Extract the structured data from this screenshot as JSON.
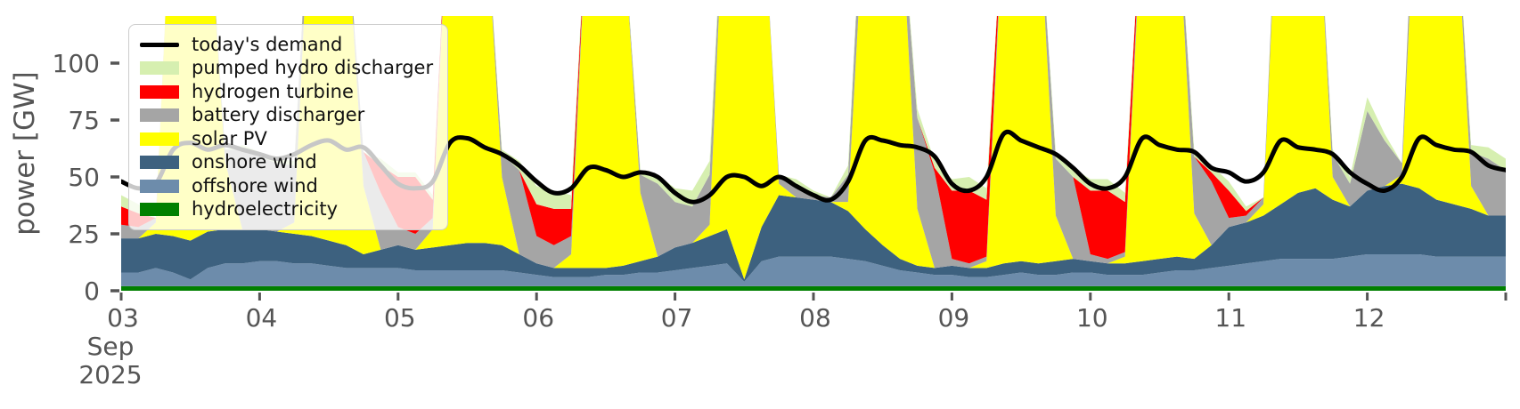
{
  "figure": {
    "background": "#ffffff",
    "text_color": "#555555",
    "tick_color": "#555555"
  },
  "legend": {
    "items": [
      {
        "label": "today's demand",
        "color": "#000000",
        "swatch": "line"
      },
      {
        "label": "pumped hydro discharger",
        "color": "#d6efb0",
        "swatch": "patch"
      },
      {
        "label": "hydrogen turbine",
        "color": "#ff0000",
        "swatch": "patch"
      },
      {
        "label": "battery discharger",
        "color": "#a5a5a5",
        "swatch": "patch"
      },
      {
        "label": "solar PV",
        "color": "#ffff00",
        "swatch": "patch"
      },
      {
        "label": "onshore wind",
        "color": "#3d617f",
        "swatch": "patch"
      },
      {
        "label": "offshore wind",
        "color": "#6d8cab",
        "swatch": "patch"
      },
      {
        "label": "hydroelectricity",
        "color": "#008000",
        "swatch": "patch"
      }
    ]
  },
  "chart_data": {
    "type": "area",
    "stacked": true,
    "title": "",
    "xlabel": "",
    "ylabel": "power [GW]",
    "ylim": [
      0,
      120
    ],
    "y_ticks": [
      0,
      25,
      50,
      75,
      100
    ],
    "grid": false,
    "legend_position": "upper left",
    "x_start": "2025-09-03 00:00",
    "x_days": 10,
    "x_step_hours": 3,
    "x_tick_labels": [
      "03",
      "04",
      "05",
      "06",
      "07",
      "08",
      "09",
      "10",
      "11",
      "12"
    ],
    "x_month_label": "Sep",
    "x_year_label": "2025",
    "note": "values in GW sampled every 3 h from 2025-09-03 00:00 to 2025-09-13 00:00; solar midday values exceed the axis and are clipped at the plot top",
    "series": [
      {
        "name": "hydroelectricity",
        "color": "#008000",
        "values": [
          2,
          2,
          2,
          2,
          2,
          2,
          2,
          2,
          2,
          2,
          2,
          2,
          2,
          2,
          2,
          2,
          2,
          2,
          2,
          2,
          2,
          2,
          2,
          2,
          2,
          2,
          2,
          2,
          2,
          2,
          2,
          2,
          2,
          2,
          2,
          2,
          2,
          2,
          2,
          2,
          2,
          2,
          2,
          2,
          2,
          2,
          2,
          2,
          2,
          2,
          2,
          2,
          2,
          2,
          2,
          2,
          2,
          2,
          2,
          2,
          2,
          2,
          2,
          2,
          2,
          2,
          2,
          2,
          2,
          2,
          2,
          2,
          2,
          2,
          2,
          2,
          2,
          2,
          2,
          2,
          2
        ]
      },
      {
        "name": "offshore wind",
        "color": "#6d8cab",
        "values": [
          6,
          6,
          8,
          6,
          3,
          8,
          10,
          10,
          11,
          11,
          10,
          10,
          9,
          8,
          8,
          8,
          8,
          7,
          7,
          7,
          7,
          7,
          7,
          6,
          5,
          4,
          4,
          4,
          5,
          5,
          6,
          6,
          7,
          8,
          9,
          10,
          2,
          11,
          13,
          13,
          13,
          13,
          12,
          11,
          9,
          7,
          6,
          5,
          5,
          4,
          4,
          5,
          6,
          5,
          5,
          6,
          6,
          5,
          5,
          5,
          6,
          7,
          7,
          8,
          9,
          10,
          11,
          12,
          12,
          12,
          12,
          13,
          14,
          14,
          14,
          14,
          13,
          13,
          13,
          13,
          13
        ]
      },
      {
        "name": "onshore wind",
        "color": "#3d617f",
        "values": [
          15,
          15,
          15,
          16,
          17,
          16,
          15,
          15,
          14,
          13,
          13,
          12,
          11,
          10,
          6,
          8,
          10,
          9,
          10,
          11,
          12,
          12,
          11,
          8,
          5,
          4,
          4,
          4,
          3,
          4,
          5,
          7,
          10,
          11,
          13,
          15,
          1,
          15,
          27,
          26,
          25,
          24,
          21,
          14,
          9,
          5,
          3,
          3,
          4,
          4,
          4,
          5,
          5,
          5,
          6,
          6,
          5,
          5,
          5,
          6,
          6,
          6,
          5,
          10,
          17,
          18,
          20,
          24,
          29,
          31,
          26,
          22,
          28,
          30,
          31,
          29,
          25,
          23,
          21,
          18,
          18
        ]
      },
      {
        "name": "solar PV",
        "color": "#ffff00",
        "values": [
          0,
          0,
          5,
          170,
          210,
          150,
          30,
          0,
          0,
          0,
          5,
          165,
          210,
          145,
          30,
          0,
          0,
          0,
          8,
          175,
          215,
          155,
          30,
          0,
          0,
          0,
          6,
          170,
          210,
          150,
          30,
          0,
          0,
          0,
          5,
          175,
          215,
          155,
          5,
          0,
          0,
          0,
          4,
          150,
          215,
          160,
          25,
          0,
          0,
          0,
          3,
          155,
          220,
          160,
          20,
          0,
          0,
          0,
          3,
          155,
          220,
          160,
          20,
          0,
          0,
          0,
          5,
          170,
          215,
          150,
          10,
          0,
          0,
          0,
          4,
          165,
          215,
          150,
          10,
          0,
          0
        ]
      },
      {
        "name": "battery discharger",
        "color": "#a5a5a5",
        "values": [
          6,
          5,
          2,
          0,
          0,
          0,
          5,
          35,
          32,
          30,
          25,
          4,
          0,
          0,
          15,
          25,
          8,
          7,
          5,
          0,
          0,
          0,
          10,
          37,
          12,
          10,
          8,
          2,
          0,
          0,
          8,
          32,
          20,
          16,
          22,
          2,
          0,
          0,
          4,
          6,
          2,
          2,
          12,
          25,
          3,
          0,
          40,
          42,
          3,
          2,
          2,
          8,
          3,
          2,
          25,
          36,
          3,
          2,
          2,
          8,
          3,
          2,
          25,
          28,
          4,
          3,
          3,
          10,
          2,
          0,
          10,
          10,
          35,
          20,
          5,
          20,
          4,
          2,
          15,
          25,
          20
        ]
      },
      {
        "name": "hydrogen turbine",
        "color": "#ff0000",
        "values": [
          8,
          6,
          0,
          0,
          0,
          0,
          0,
          0,
          0,
          0,
          0,
          0,
          0,
          0,
          0,
          12,
          22,
          25,
          8,
          0,
          0,
          0,
          0,
          0,
          14,
          16,
          12,
          0,
          0,
          0,
          0,
          0,
          0,
          0,
          0,
          0,
          0,
          0,
          0,
          0,
          0,
          0,
          0,
          0,
          0,
          0,
          0,
          2,
          30,
          32,
          25,
          0,
          0,
          0,
          0,
          0,
          28,
          30,
          22,
          0,
          0,
          0,
          0,
          4,
          12,
          2,
          0,
          0,
          0,
          0,
          0,
          0,
          0,
          0,
          0,
          0,
          0,
          0,
          0,
          0,
          0
        ]
      },
      {
        "name": "pumped hydro discharger",
        "color": "#d6efb0",
        "values": [
          5,
          4,
          0,
          0,
          0,
          0,
          0,
          2,
          2,
          2,
          2,
          0,
          0,
          0,
          0,
          3,
          2,
          2,
          2,
          0,
          0,
          0,
          2,
          4,
          8,
          8,
          6,
          0,
          0,
          0,
          2,
          4,
          6,
          7,
          6,
          2,
          0,
          0,
          0,
          2,
          2,
          0,
          4,
          0,
          0,
          0,
          4,
          3,
          5,
          6,
          5,
          0,
          0,
          0,
          3,
          4,
          5,
          5,
          4,
          0,
          0,
          0,
          3,
          3,
          4,
          2,
          0,
          0,
          0,
          0,
          2,
          3,
          6,
          3,
          0,
          0,
          0,
          0,
          3,
          5,
          5
        ]
      }
    ],
    "demand_line": {
      "name": "today's demand",
      "color": "#000000",
      "width": 5,
      "values": [
        48,
        45,
        47,
        62,
        65,
        62,
        64,
        62,
        60,
        58,
        60,
        64,
        66,
        62,
        63,
        55,
        47,
        45,
        48,
        65,
        67,
        63,
        60,
        55,
        48,
        43,
        45,
        54,
        53,
        50,
        52,
        50,
        43,
        39,
        42,
        50,
        50,
        46,
        50,
        46,
        42,
        40,
        48,
        66,
        66,
        64,
        63,
        59,
        47,
        44,
        50,
        69,
        66,
        63,
        60,
        54,
        47,
        45,
        50,
        67,
        64,
        62,
        61,
        54,
        52,
        48,
        52,
        66,
        63,
        62,
        60,
        52,
        47,
        44,
        50,
        67,
        64,
        62,
        61,
        55,
        53
      ]
    }
  }
}
